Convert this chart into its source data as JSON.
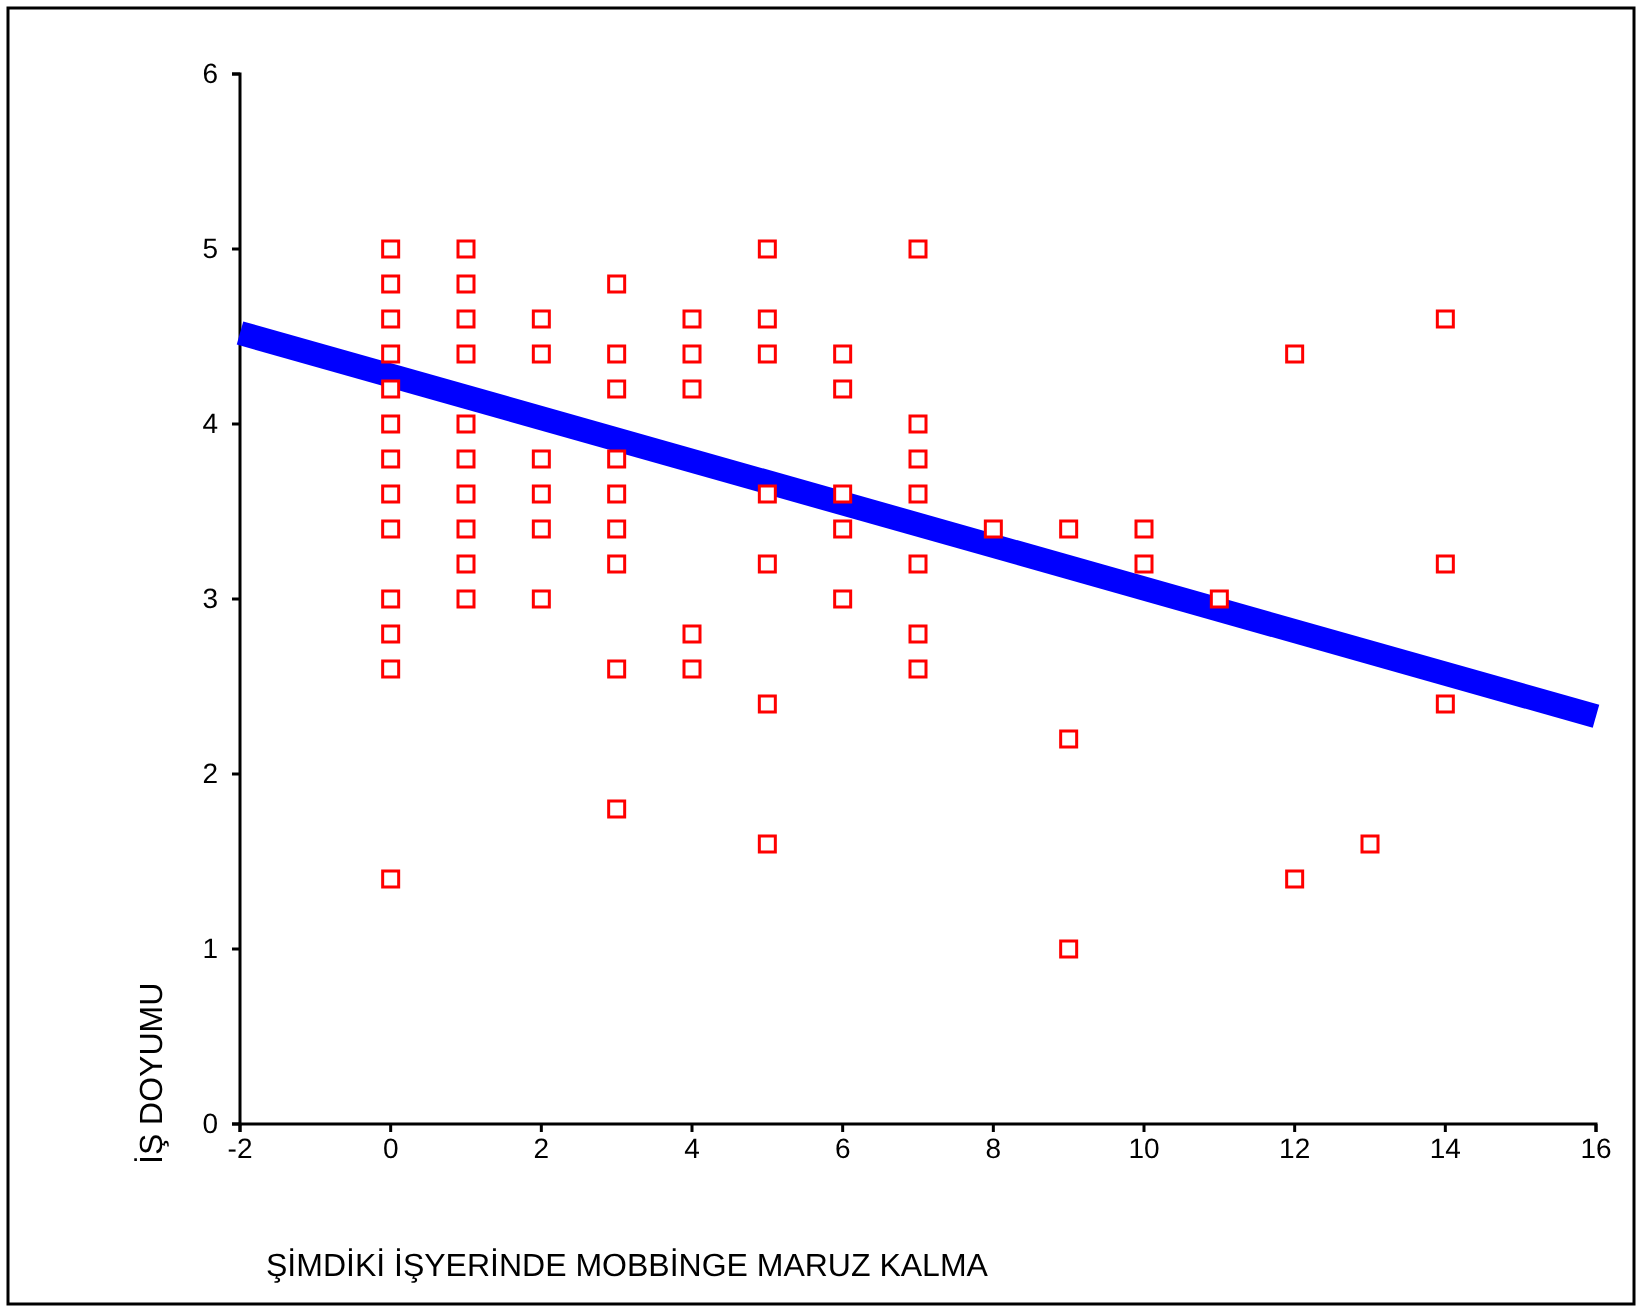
{
  "chart_data": {
    "type": "scatter",
    "xlabel": "ŞİMDİKİ İŞYERİNDE MOBBİNGE MARUZ KALMA",
    "ylabel": "İŞ DOYUMU",
    "xlim": [
      -2,
      16
    ],
    "xticks": [
      -2,
      0,
      2,
      4,
      6,
      8,
      10,
      12,
      14,
      16
    ],
    "ylim": [
      0,
      6
    ],
    "yticks": [
      0,
      1,
      2,
      3,
      4,
      5,
      6
    ],
    "grid": false,
    "series": [
      {
        "color": "#ff0000",
        "marker": "square",
        "x": [
          0,
          0,
          0,
          0,
          0,
          0,
          0,
          0,
          0,
          0,
          0,
          0,
          0,
          1,
          1,
          1,
          1,
          1,
          1,
          1,
          1,
          1,
          1,
          2,
          2,
          2,
          2,
          2,
          2,
          3,
          3,
          3,
          3,
          3,
          3,
          3,
          3,
          3,
          4,
          4,
          4,
          4,
          4,
          5,
          5,
          5,
          5,
          5,
          5,
          5,
          6,
          6,
          6,
          6,
          6,
          7,
          7,
          7,
          7,
          7,
          7,
          7,
          8,
          9,
          9,
          9,
          10,
          10,
          11,
          12,
          12,
          13,
          14,
          14,
          14
        ],
        "values": [
          5,
          4.8,
          4.6,
          4.4,
          4.2,
          4.0,
          3.8,
          3.6,
          3.4,
          3.0,
          2.8,
          2.6,
          1.4,
          5,
          4.8,
          4.6,
          4.4,
          4.0,
          3.8,
          3.6,
          3.4,
          3.2,
          3.0,
          4.6,
          4.4,
          3.8,
          3.6,
          3.4,
          3.0,
          4.8,
          4.4,
          4.2,
          3.8,
          3.6,
          3.4,
          3.2,
          2.6,
          1.8,
          4.6,
          4.4,
          4.2,
          2.8,
          2.6,
          5,
          4.6,
          4.4,
          3.6,
          3.2,
          2.4,
          1.6,
          4.4,
          4.2,
          3.6,
          3.4,
          3.0,
          5,
          4.0,
          3.8,
          3.6,
          3.2,
          2.8,
          2.6,
          3.4,
          3.4,
          2.2,
          1.0,
          3.4,
          3.2,
          3.0,
          4.4,
          1.4,
          1.6,
          4.6,
          3.2,
          2.4
        ]
      },
      {
        "type": "line",
        "color": "#0000ff",
        "x": [
          -2,
          16
        ],
        "values": [
          4.52,
          2.33
        ],
        "marker": "none"
      }
    ]
  }
}
